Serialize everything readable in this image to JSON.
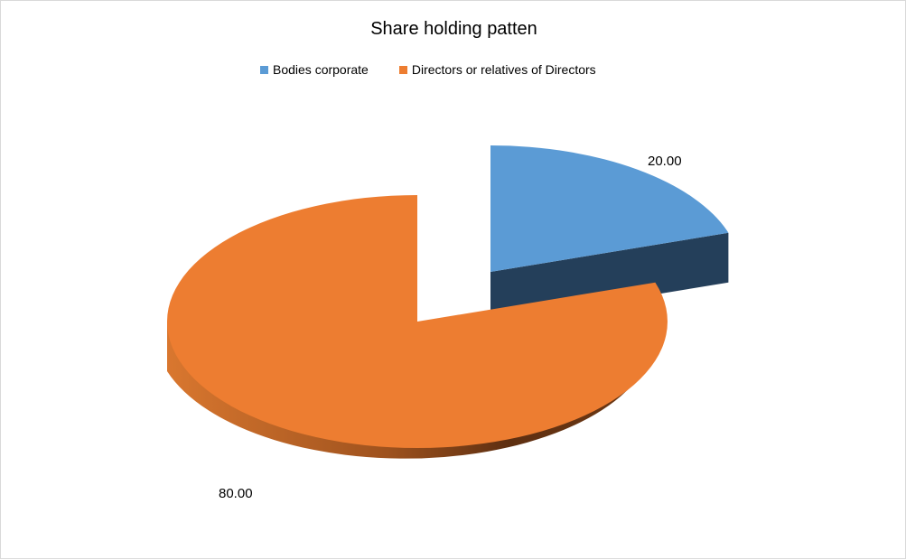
{
  "chart_data": {
    "type": "pie",
    "style": "3d-exploded",
    "title": "Share holding patten",
    "legend_position": "top",
    "categories": [
      "Bodies corporate",
      "Directors or relatives of Directors"
    ],
    "values": [
      20.0,
      80.0
    ],
    "data_labels": [
      "20.00",
      "80.00"
    ],
    "colors": [
      "#5b9bd5",
      "#ed7d31"
    ],
    "exploded": [
      "Bodies corporate"
    ]
  }
}
